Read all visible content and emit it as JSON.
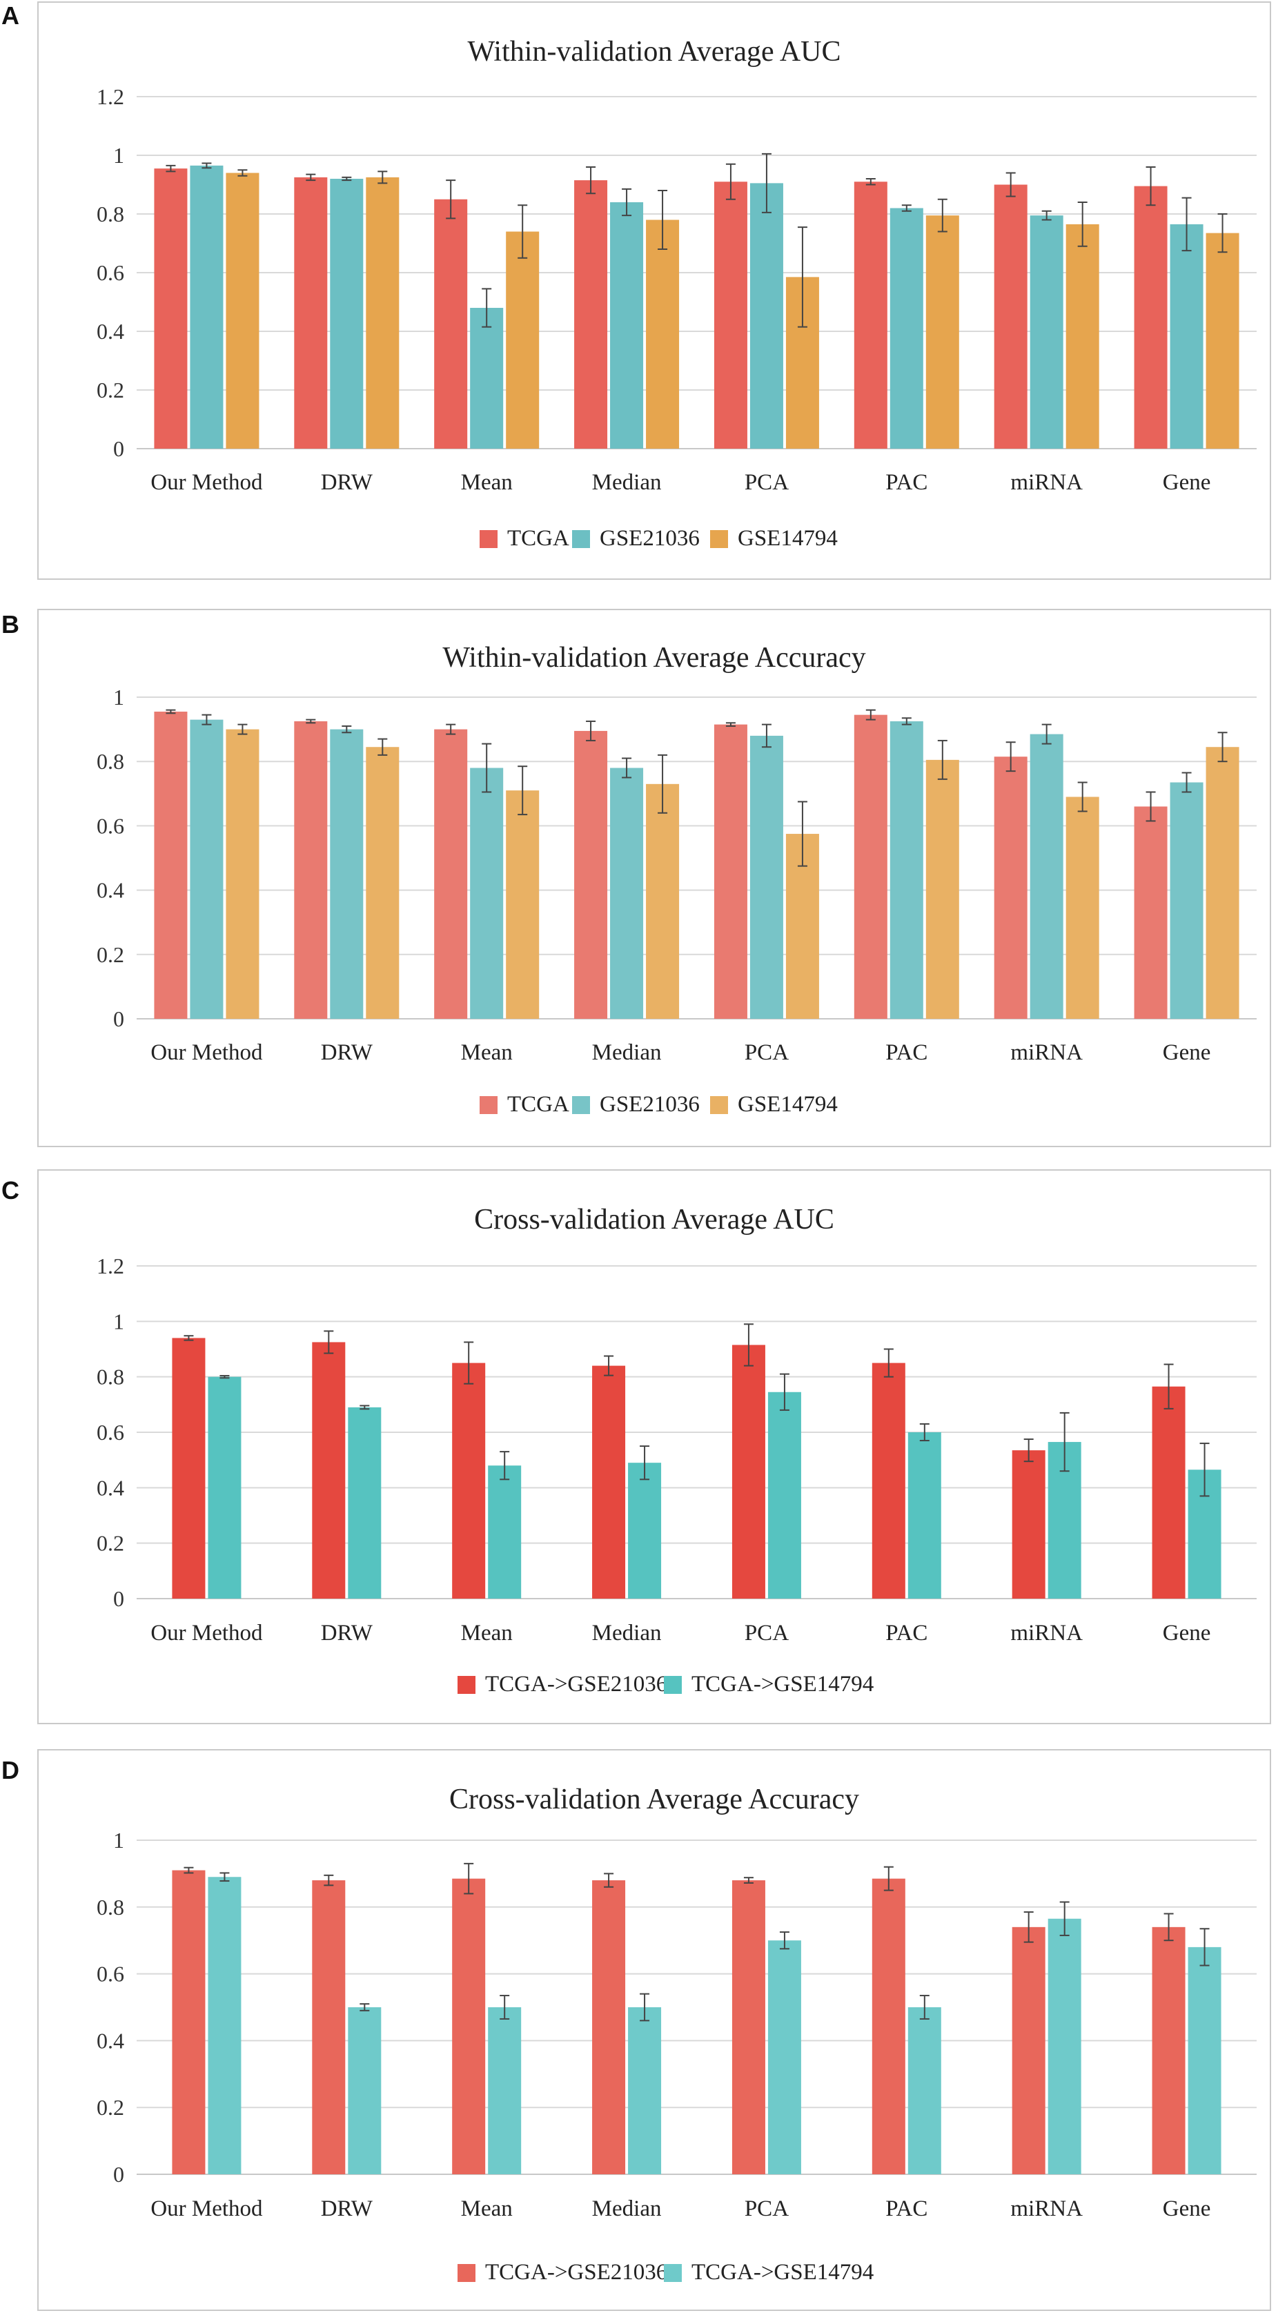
{
  "panels": [
    {
      "letter": "A",
      "chart_data": {
        "type": "bar",
        "title": "Within-validation Average AUC",
        "xlabel": "",
        "ylabel": "",
        "ylim": [
          0,
          1.2
        ],
        "yticks": [
          0,
          0.2,
          0.4,
          0.6,
          0.8,
          1,
          1.2
        ],
        "ytick_labels": [
          "0",
          "0.2",
          "0.4",
          "0.6",
          "0.8",
          "1",
          "1.2"
        ],
        "categories": [
          "Our Method",
          "DRW",
          "Mean",
          "Median",
          "PCA",
          "PAC",
          "miRNA",
          "Gene"
        ],
        "series": [
          {
            "name": "TCGA",
            "color": "#e8635a",
            "values": [
              0.955,
              0.925,
              0.85,
              0.915,
              0.91,
              0.91,
              0.9,
              0.895
            ],
            "errors": [
              0.01,
              0.01,
              0.065,
              0.045,
              0.06,
              0.01,
              0.04,
              0.065
            ]
          },
          {
            "name": "GSE21036",
            "color": "#6cbfc3",
            "values": [
              0.965,
              0.92,
              0.48,
              0.84,
              0.905,
              0.82,
              0.795,
              0.765
            ],
            "errors": [
              0.008,
              0.005,
              0.065,
              0.045,
              0.1,
              0.01,
              0.015,
              0.09
            ]
          },
          {
            "name": "GSE14794",
            "color": "#e6a54e",
            "values": [
              0.94,
              0.925,
              0.74,
              0.78,
              0.585,
              0.795,
              0.765,
              0.735
            ],
            "errors": [
              0.01,
              0.02,
              0.09,
              0.1,
              0.17,
              0.055,
              0.075,
              0.065
            ]
          }
        ],
        "grid": true,
        "legend": "bottom"
      }
    },
    {
      "letter": "B",
      "chart_data": {
        "type": "bar",
        "title": "Within-validation Average Accuracy",
        "xlabel": "",
        "ylabel": "",
        "ylim": [
          0,
          1
        ],
        "yticks": [
          0,
          0.2,
          0.4,
          0.6,
          0.8,
          1
        ],
        "ytick_labels": [
          "0",
          "0.2",
          "0.4",
          "0.6",
          "0.8",
          "1"
        ],
        "categories": [
          "Our Method",
          "DRW",
          "Mean",
          "Median",
          "PCA",
          "PAC",
          "miRNA",
          "Gene"
        ],
        "series": [
          {
            "name": "TCGA",
            "color": "#e97a70",
            "values": [
              0.955,
              0.925,
              0.9,
              0.895,
              0.915,
              0.945,
              0.815,
              0.66
            ],
            "errors": [
              0.005,
              0.005,
              0.015,
              0.03,
              0.005,
              0.015,
              0.045,
              0.045
            ]
          },
          {
            "name": "GSE21036",
            "color": "#78c4c7",
            "values": [
              0.93,
              0.9,
              0.78,
              0.78,
              0.88,
              0.925,
              0.885,
              0.735
            ],
            "errors": [
              0.015,
              0.01,
              0.075,
              0.03,
              0.035,
              0.01,
              0.03,
              0.03
            ]
          },
          {
            "name": "GSE14794",
            "color": "#e9b164",
            "values": [
              0.9,
              0.845,
              0.71,
              0.73,
              0.575,
              0.805,
              0.69,
              0.845
            ],
            "errors": [
              0.015,
              0.025,
              0.075,
              0.09,
              0.1,
              0.06,
              0.045,
              0.045
            ]
          }
        ],
        "grid": true,
        "legend": "bottom"
      }
    },
    {
      "letter": "C",
      "chart_data": {
        "type": "bar",
        "title": "Cross-validation Average AUC",
        "xlabel": "",
        "ylabel": "",
        "ylim": [
          0,
          1.2
        ],
        "yticks": [
          0,
          0.2,
          0.4,
          0.6,
          0.8,
          1,
          1.2
        ],
        "ytick_labels": [
          "0",
          "0.2",
          "0.4",
          "0.6",
          "0.8",
          "1",
          "1.2"
        ],
        "categories": [
          "Our Method",
          "DRW",
          "Mean",
          "Median",
          "PCA",
          "PAC",
          "miRNA",
          "Gene"
        ],
        "series": [
          {
            "name": "TCGA->GSE21036",
            "color": "#e5483f",
            "values": [
              0.94,
              0.925,
              0.85,
              0.84,
              0.915,
              0.85,
              0.535,
              0.765
            ],
            "errors": [
              0.008,
              0.04,
              0.075,
              0.035,
              0.075,
              0.05,
              0.04,
              0.08
            ]
          },
          {
            "name": "TCGA->GSE14794",
            "color": "#56c3c0",
            "values": [
              0.8,
              0.69,
              0.48,
              0.49,
              0.745,
              0.6,
              0.565,
              0.465
            ]
          },
          {
            "name": "_errors_series2",
            "color": "",
            "values": [
              0.004,
              0.006,
              0.05,
              0.06,
              0.065,
              0.03,
              0.105,
              0.095
            ]
          }
        ],
        "grid": true,
        "legend": "bottom"
      }
    },
    {
      "letter": "D",
      "chart_data": {
        "type": "bar",
        "title": "Cross-validation Average Accuracy",
        "xlabel": "",
        "ylabel": "",
        "ylim": [
          0,
          1
        ],
        "yticks": [
          0,
          0.2,
          0.4,
          0.6,
          0.8,
          1
        ],
        "ytick_labels": [
          "0",
          "0.2",
          "0.4",
          "0.6",
          "0.8",
          "1"
        ],
        "categories": [
          "Our Method",
          "DRW",
          "Mean",
          "Median",
          "PCA",
          "PAC",
          "miRNA",
          "Gene"
        ],
        "series": [
          {
            "name": "TCGA->GSE21036",
            "color": "#e8675b",
            "values": [
              0.91,
              0.88,
              0.885,
              0.88,
              0.88,
              0.885,
              0.74,
              0.74
            ],
            "errors": [
              0.008,
              0.015,
              0.045,
              0.02,
              0.008,
              0.035,
              0.045,
              0.04
            ]
          },
          {
            "name": "TCGA->GSE14794",
            "color": "#6fcaca",
            "values": [
              0.89,
              0.5,
              0.5,
              0.5,
              0.7,
              0.5,
              0.765,
              0.68
            ],
            "errors": [
              0.012,
              0.01,
              0.035,
              0.04,
              0.025,
              0.035,
              0.05,
              0.055
            ]
          }
        ],
        "grid": true,
        "legend": "bottom"
      }
    }
  ]
}
